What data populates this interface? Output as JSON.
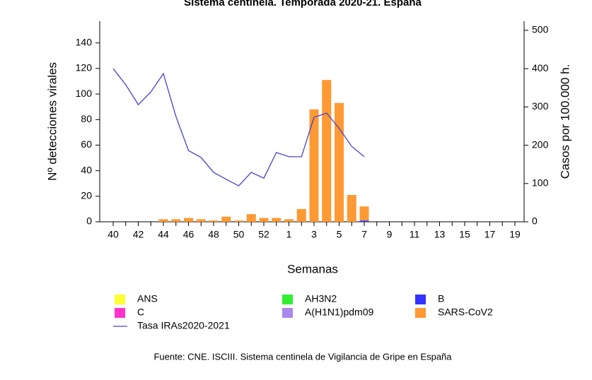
{
  "chart_data": {
    "type": "bar",
    "title": "Sistema centinela. Temporada 2020-21. España",
    "x_label": "Semanas",
    "y_label": "Nº detecciones virales",
    "y2_label": "Casos por 100.000 h.",
    "source": "Fuente: CNE. ISCIII. Sistema centinela de Vigilancia de Gripe en España",
    "stacked": true,
    "categories": [
      "40",
      null,
      "42",
      null,
      "44",
      null,
      "46",
      null,
      "48",
      null,
      "50",
      null,
      "52",
      null,
      "1",
      null,
      "3",
      null,
      "5",
      null,
      "7",
      null,
      "9",
      null,
      "11",
      null,
      "13",
      null,
      "15",
      null,
      "17",
      null,
      "19"
    ],
    "ylim": [
      0,
      157
    ],
    "yticks": [
      0,
      20,
      40,
      60,
      80,
      100,
      120,
      140
    ],
    "y2lim": [
      0,
      524
    ],
    "y2ticks": [
      0,
      100,
      200,
      300,
      400,
      500
    ],
    "series": [
      {
        "name": "ANS",
        "color": "#ffff33",
        "values": [
          0,
          0,
          0,
          0,
          0,
          0,
          0,
          0,
          0,
          0,
          0,
          0,
          0,
          0,
          0,
          0,
          0,
          0,
          0,
          0,
          0,
          null,
          null,
          null,
          null,
          null,
          null,
          null,
          null,
          null,
          null,
          null,
          null
        ]
      },
      {
        "name": "AH3N2",
        "color": "#33ee33",
        "values": [
          0,
          0,
          0,
          0,
          0,
          0,
          0,
          0,
          0,
          0,
          0,
          0,
          0,
          0,
          0,
          0,
          0,
          0,
          0,
          0,
          0,
          null,
          null,
          null,
          null,
          null,
          null,
          null,
          null,
          null,
          null,
          null,
          null
        ]
      },
      {
        "name": "B",
        "color": "#3333ff",
        "values": [
          0,
          0,
          0,
          0,
          0,
          0,
          0,
          0,
          0,
          0,
          0,
          0,
          0,
          0,
          0,
          0,
          0,
          0,
          0,
          0,
          1,
          null,
          null,
          null,
          null,
          null,
          null,
          null,
          null,
          null,
          null,
          null,
          null
        ]
      },
      {
        "name": "C",
        "color": "#ff33cc",
        "values": [
          0,
          0,
          0,
          0,
          0,
          0,
          0,
          0,
          0,
          0,
          0,
          0,
          0,
          0,
          0,
          0,
          0,
          0,
          0,
          0,
          0,
          null,
          null,
          null,
          null,
          null,
          null,
          null,
          null,
          null,
          null,
          null,
          null
        ]
      },
      {
        "name": "A(H1N1)pdm09",
        "color": "#aa88ee",
        "values": [
          0,
          0,
          0,
          0,
          0,
          0,
          0,
          0,
          0,
          0,
          0,
          0,
          0,
          0,
          0,
          0,
          0,
          0,
          0,
          0,
          0,
          null,
          null,
          null,
          null,
          null,
          null,
          null,
          null,
          null,
          null,
          null,
          null
        ]
      },
      {
        "name": "SARS-CoV2",
        "color": "#ff9933",
        "values": [
          0,
          0,
          0,
          0,
          2,
          2,
          3,
          2,
          1,
          4,
          1,
          6,
          3,
          3,
          2,
          10,
          88,
          111,
          93,
          21,
          11,
          null,
          null,
          null,
          null,
          null,
          null,
          null,
          null,
          null,
          null,
          null,
          null
        ]
      },
      {
        "name": "Tasa IRAs2020-2021",
        "color": "#4444cc",
        "type": "line",
        "axis": "y2",
        "values": [
          400,
          358,
          306,
          339,
          387,
          275,
          186,
          168,
          129,
          111,
          94,
          129,
          114,
          181,
          170,
          170,
          273,
          284,
          244,
          197,
          170,
          null,
          null,
          null,
          null,
          null,
          null,
          null,
          null,
          null,
          null,
          null,
          null
        ]
      }
    ]
  }
}
